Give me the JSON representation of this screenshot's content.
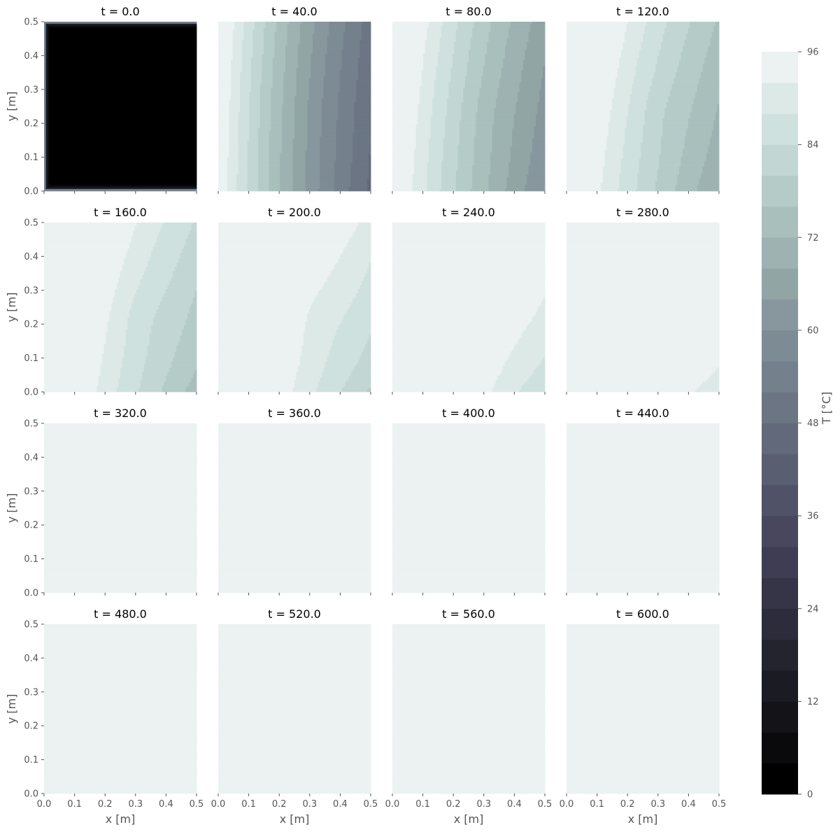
{
  "chart_data": {
    "type": "heatmap",
    "description_kind": "filled contour small multiples",
    "xlabel": "x [m]",
    "ylabel": "y [m]",
    "xlim": [
      0.0,
      0.5
    ],
    "ylim": [
      0.0,
      0.5
    ],
    "x_ticks": [
      "0.0",
      "0.1",
      "0.2",
      "0.3",
      "0.4",
      "0.5"
    ],
    "y_ticks": [
      "0.0",
      "0.1",
      "0.2",
      "0.3",
      "0.4",
      "0.5"
    ],
    "grid": false,
    "panels": [
      {
        "title": "t = 0.0",
        "t": 0.0
      },
      {
        "title": "t = 40.0",
        "t": 40.0
      },
      {
        "title": "t = 80.0",
        "t": 80.0
      },
      {
        "title": "t = 120.0",
        "t": 120.0
      },
      {
        "title": "t = 160.0",
        "t": 160.0
      },
      {
        "title": "t = 200.0",
        "t": 200.0
      },
      {
        "title": "t = 240.0",
        "t": 240.0
      },
      {
        "title": "t = 280.0",
        "t": 280.0
      },
      {
        "title": "t = 320.0",
        "t": 320.0
      },
      {
        "title": "t = 360.0",
        "t": 360.0
      },
      {
        "title": "t = 400.0",
        "t": 400.0
      },
      {
        "title": "t = 440.0",
        "t": 440.0
      },
      {
        "title": "t = 480.0",
        "t": 480.0
      },
      {
        "title": "t = 520.0",
        "t": 520.0
      },
      {
        "title": "t = 560.0",
        "t": 560.0
      },
      {
        "title": "t = 600.0",
        "t": 600.0
      }
    ],
    "colorbar": {
      "label": "T [°C]",
      "min": 0,
      "max": 96,
      "step": 4,
      "ticks": [
        "0",
        "12",
        "24",
        "36",
        "48",
        "60",
        "72",
        "84",
        "96"
      ]
    },
    "colors": {
      "levels": [
        "#000000",
        "#0a0a0d",
        "#131318",
        "#1b1b23",
        "#24242f",
        "#2d2c3b",
        "#363447",
        "#3f3d53",
        "#48475e",
        "#505268",
        "#595e71",
        "#62697a",
        "#6b7583",
        "#74808c",
        "#7d8b94",
        "#87979d",
        "#91a5a5",
        "#9db2b1",
        "#a9bfbc",
        "#b5cbc8",
        "#c2d7d3",
        "#cfe1de",
        "#dde9e7",
        "#ebf2f1"
      ]
    }
  }
}
